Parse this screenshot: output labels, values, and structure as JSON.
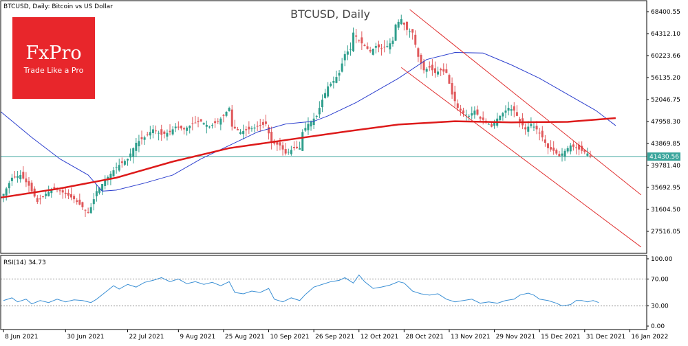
{
  "header": {
    "info": "BTCUSD, Daily:  Bitcoin vs US Dollar",
    "title": "BTCUSD, Daily"
  },
  "logo": {
    "brand": "FxPro",
    "tagline": "Trade Like a Pro",
    "color": "#e8262b"
  },
  "chart_data": [
    {
      "type": "candlestick",
      "title": "BTCUSD, Daily",
      "y_ticks": [
        "68400.55",
        "64312.10",
        "60223.66",
        "56135.20",
        "52046.75",
        "47958.30",
        "43869.85",
        "39781.40",
        "35692.95",
        "31604.50",
        "27516.05"
      ],
      "ylim": [
        23427.6,
        70445
      ],
      "x_ticks": [
        "8 Jun 2021",
        "30 Jun 2021",
        "22 Jul 2021",
        "9 Aug 2021",
        "25 Aug 2021",
        "10 Sep 2021",
        "26 Sep 2021",
        "12 Oct 2021",
        "28 Oct 2021",
        "13 Nov 2021",
        "29 Nov 2021",
        "15 Dec 2021",
        "31 Dec 2021",
        "16 Jan 2022"
      ],
      "x_tick_days": [
        0,
        22,
        44,
        62,
        78,
        94,
        110,
        126,
        142,
        158,
        174,
        190,
        206,
        222
      ],
      "days_range": [
        -1,
        228
      ],
      "current_price": "41430.56",
      "current_value": 41430.56,
      "colors": {
        "up": "#2e9e8c",
        "down": "#e0585b",
        "ma_fast": "#2c3fce",
        "ma_slow": "#dd1a1a",
        "channel": "#e03030",
        "price_line": "#3aa59c"
      },
      "series": [
        {
          "kind": "ma_fast",
          "points": [
            [
              -1,
              49800
            ],
            [
              10,
              45000
            ],
            [
              20,
              41000
            ],
            [
              30,
              38000
            ],
            [
              35,
              35000
            ],
            [
              40,
              35200
            ],
            [
              50,
              36500
            ],
            [
              60,
              38000
            ],
            [
              70,
              41000
            ],
            [
              80,
              43500
            ],
            [
              90,
              46000
            ],
            [
              100,
              47500
            ],
            [
              110,
              48000
            ],
            [
              115,
              49000
            ],
            [
              125,
              51500
            ],
            [
              130,
              53000
            ],
            [
              140,
              56000
            ],
            [
              150,
              59500
            ],
            [
              160,
              60800
            ],
            [
              170,
              60700
            ],
            [
              180,
              58500
            ],
            [
              190,
              56000
            ],
            [
              200,
              53000
            ],
            [
              210,
              50000
            ],
            [
              217,
              47200
            ]
          ]
        },
        {
          "kind": "ma_slow",
          "points": [
            [
              -1,
              33800
            ],
            [
              20,
              35500
            ],
            [
              40,
              37500
            ],
            [
              60,
              40500
            ],
            [
              80,
              43000
            ],
            [
              100,
              44500
            ],
            [
              120,
              46000
            ],
            [
              140,
              47400
            ],
            [
              160,
              48000
            ],
            [
              180,
              47800
            ],
            [
              200,
              47900
            ],
            [
              217,
              48600
            ]
          ]
        },
        {
          "kind": "channel",
          "lines": [
            [
              [
                144,
                68800
              ],
              [
                226,
                34300
              ]
            ],
            [
              [
                141,
                58000
              ],
              [
                226,
                24600
              ]
            ]
          ]
        },
        {
          "kind": "candles",
          "anchors": [
            [
              0,
              34500
            ],
            [
              3,
              37500
            ],
            [
              6,
              38000
            ],
            [
              9,
              36000
            ],
            [
              12,
              33000
            ],
            [
              15,
              34500
            ],
            [
              18,
              35500
            ],
            [
              22,
              34500
            ],
            [
              25,
              33500
            ],
            [
              28,
              32000
            ],
            [
              30,
              31000
            ],
            [
              31,
              32000
            ],
            [
              33,
              35000
            ],
            [
              36,
              37000
            ],
            [
              40,
              39500
            ],
            [
              44,
              41000
            ],
            [
              47,
              44000
            ],
            [
              50,
              45000
            ],
            [
              53,
              46500
            ],
            [
              56,
              45500
            ],
            [
              59,
              46000
            ],
            [
              61,
              47000
            ],
            [
              64,
              46500
            ],
            [
              67,
              47500
            ],
            [
              70,
              48000
            ],
            [
              73,
              47000
            ],
            [
              76,
              48000
            ],
            [
              78,
              49000
            ],
            [
              80,
              50500
            ],
            [
              81,
              47000
            ],
            [
              84,
              46000
            ],
            [
              87,
              46500
            ],
            [
              90,
              47000
            ],
            [
              93,
              47500
            ],
            [
              95,
              44000
            ],
            [
              98,
              43500
            ],
            [
              100,
              42000
            ],
            [
              103,
              43000
            ],
            [
              105,
              43000
            ],
            [
              106,
              46000
            ],
            [
              108,
              47500
            ],
            [
              111,
              49000
            ],
            [
              113,
              52000
            ],
            [
              115,
              54500
            ],
            [
              117,
              55500
            ],
            [
              119,
              57000
            ],
            [
              121,
              60500
            ],
            [
              123,
              61500
            ],
            [
              124,
              64500
            ],
            [
              126,
              63000
            ],
            [
              128,
              62000
            ],
            [
              130,
              61000
            ],
            [
              132,
              62000
            ],
            [
              134,
              61500
            ],
            [
              136,
              62000
            ],
            [
              138,
              63000
            ],
            [
              139,
              66000
            ],
            [
              141,
              67000
            ],
            [
              143,
              65000
            ],
            [
              145,
              64500
            ],
            [
              147,
              60000
            ],
            [
              149,
              57500
            ],
            [
              151,
              58000
            ],
            [
              153,
              57000
            ],
            [
              155,
              57500
            ],
            [
              157,
              57000
            ],
            [
              159,
              53000
            ],
            [
              161,
              50500
            ],
            [
              163,
              49500
            ],
            [
              165,
              49000
            ],
            [
              167,
              50000
            ],
            [
              169,
              48500
            ],
            [
              171,
              48000
            ],
            [
              173,
              47000
            ],
            [
              175,
              48500
            ],
            [
              177,
              49500
            ],
            [
              179,
              50500
            ],
            [
              181,
              50000
            ],
            [
              183,
              48000
            ],
            [
              185,
              46500
            ],
            [
              187,
              47500
            ],
            [
              189,
              46500
            ],
            [
              191,
              45000
            ],
            [
              193,
              43000
            ],
            [
              195,
              42500
            ],
            [
              197,
              41500
            ],
            [
              199,
              42500
            ],
            [
              201,
              43500
            ],
            [
              203,
              43000
            ],
            [
              205,
              42500
            ],
            [
              207,
              42000
            ],
            [
              208,
              41430.56
            ]
          ]
        }
      ]
    },
    {
      "type": "line",
      "title": "RSI(14) 34.73",
      "label": "RSI(14) 34.73",
      "y_ticks": [
        "100.00",
        "70.00",
        "30.00",
        "0.00"
      ],
      "ylim": [
        0,
        100
      ],
      "levels": [
        70,
        30
      ],
      "colors": {
        "line": "#3a8fd4",
        "level": "#999999"
      },
      "series": [
        {
          "kind": "rsi",
          "points": [
            [
              0,
              38
            ],
            [
              3,
              42
            ],
            [
              5,
              36
            ],
            [
              8,
              40
            ],
            [
              10,
              33
            ],
            [
              13,
              38
            ],
            [
              16,
              35
            ],
            [
              19,
              40
            ],
            [
              22,
              36
            ],
            [
              25,
              39
            ],
            [
              28,
              38
            ],
            [
              31,
              35
            ],
            [
              33,
              40
            ],
            [
              36,
              50
            ],
            [
              39,
              60
            ],
            [
              41,
              55
            ],
            [
              44,
              62
            ],
            [
              47,
              58
            ],
            [
              50,
              65
            ],
            [
              53,
              68
            ],
            [
              56,
              72
            ],
            [
              59,
              66
            ],
            [
              62,
              70
            ],
            [
              65,
              63
            ],
            [
              68,
              66
            ],
            [
              71,
              62
            ],
            [
              74,
              65
            ],
            [
              77,
              60
            ],
            [
              80,
              66
            ],
            [
              82,
              50
            ],
            [
              85,
              48
            ],
            [
              88,
              52
            ],
            [
              91,
              50
            ],
            [
              94,
              56
            ],
            [
              96,
              40
            ],
            [
              99,
              36
            ],
            [
              102,
              42
            ],
            [
              105,
              38
            ],
            [
              107,
              47
            ],
            [
              110,
              58
            ],
            [
              113,
              62
            ],
            [
              116,
              66
            ],
            [
              119,
              68
            ],
            [
              121,
              72
            ],
            [
              124,
              64
            ],
            [
              126,
              76
            ],
            [
              128,
              66
            ],
            [
              131,
              56
            ],
            [
              134,
              58
            ],
            [
              137,
              61
            ],
            [
              140,
              66
            ],
            [
              142,
              64
            ],
            [
              145,
              52
            ],
            [
              148,
              48
            ],
            [
              151,
              46
            ],
            [
              154,
              48
            ],
            [
              157,
              40
            ],
            [
              160,
              36
            ],
            [
              163,
              38
            ],
            [
              166,
              40
            ],
            [
              169,
              34
            ],
            [
              172,
              36
            ],
            [
              175,
              34
            ],
            [
              178,
              38
            ],
            [
              181,
              40
            ],
            [
              183,
              46
            ],
            [
              186,
              49
            ],
            [
              188,
              46
            ],
            [
              190,
              40
            ],
            [
              193,
              38
            ],
            [
              196,
              34
            ],
            [
              198,
              30
            ],
            [
              201,
              32
            ],
            [
              203,
              38
            ],
            [
              205,
              38
            ],
            [
              207,
              36
            ],
            [
              209,
              38
            ],
            [
              211,
              35
            ]
          ]
        }
      ]
    }
  ]
}
